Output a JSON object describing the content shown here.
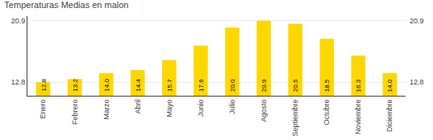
{
  "chart_data": {
    "type": "bar",
    "title": "Temperaturas Medias en malon",
    "categories": [
      "Enero",
      "Febrero",
      "Marzo",
      "Abril",
      "Mayo",
      "Junio",
      "Julio",
      "Agosto",
      "Septiembre",
      "Octubre",
      "Noviembre",
      "Diciembre"
    ],
    "values": [
      12.8,
      13.2,
      14.0,
      14.4,
      15.7,
      17.6,
      20.0,
      20.9,
      20.5,
      18.5,
      16.3,
      14.0
    ],
    "value_labels": [
      "12.8",
      "13.2",
      "14.0",
      "14.4",
      "15.7",
      "17.6",
      "20.0",
      "20.9",
      "20.5",
      "18.5",
      "16.3",
      "14.0"
    ],
    "color": "#FFD700",
    "ylim": [
      11.0,
      21.5
    ],
    "yticks": [
      12.8,
      20.9
    ],
    "grid": true,
    "data_labels": true
  }
}
